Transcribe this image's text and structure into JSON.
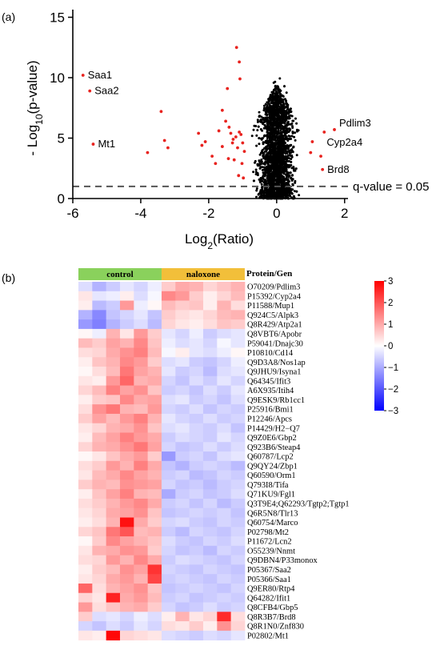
{
  "panels": {
    "a": "(a)",
    "b": "(b)"
  },
  "chart_data": [
    {
      "type": "scatter",
      "xlabel_base": "Log",
      "xlabel_sub": "2",
      "xlabel_rest": "(Ratio)",
      "ylabel_pre": "- Log",
      "ylabel_sub": "10",
      "ylabel_rest": "(p-value)",
      "xlim": [
        -6,
        2.1
      ],
      "ylim": [
        0,
        15.5
      ],
      "xticks": [
        "-6",
        "-4",
        "-2",
        "0",
        "2"
      ],
      "yticks": [
        "0",
        "5",
        "10",
        "15"
      ],
      "threshold": {
        "y": 1.0,
        "label": "q-value = 0.05"
      },
      "colors": {
        "significant": "#e8231f",
        "other": "#000000",
        "threshold": "#555555"
      },
      "labels": [
        {
          "text": "Saa1",
          "x": -5.7,
          "y": 10.2
        },
        {
          "text": "Saa2",
          "x": -5.5,
          "y": 8.9
        },
        {
          "text": "Mt1",
          "x": -5.4,
          "y": 4.5
        },
        {
          "text": "Pdlim3",
          "x": 1.7,
          "y": 5.7
        },
        {
          "text": "Cyp2a4",
          "x": 1.05,
          "y": 4.7
        },
        {
          "text": "Brd8",
          "x": 1.35,
          "y": 2.4
        }
      ],
      "significant_points": [
        [
          -5.7,
          10.2
        ],
        [
          -5.5,
          8.9
        ],
        [
          -5.4,
          4.5
        ],
        [
          -3.8,
          3.8
        ],
        [
          -3.4,
          7.2
        ],
        [
          -3.3,
          4.8
        ],
        [
          -3.2,
          4.2
        ],
        [
          -2.3,
          5.4
        ],
        [
          -2.2,
          4.4
        ],
        [
          -2.1,
          4.7
        ],
        [
          -1.9,
          3.5
        ],
        [
          -1.7,
          5.6
        ],
        [
          -1.6,
          7.3
        ],
        [
          -1.5,
          6.4
        ],
        [
          -1.45,
          9.1
        ],
        [
          -1.4,
          5.9
        ],
        [
          -1.35,
          5.4
        ],
        [
          -1.3,
          4.6
        ],
        [
          -1.25,
          3.2
        ],
        [
          -1.2,
          5.1
        ],
        [
          -1.18,
          12.5
        ],
        [
          -1.15,
          4.2
        ],
        [
          -1.12,
          1.9
        ],
        [
          -1.1,
          11.3
        ],
        [
          -1.08,
          9.9
        ],
        [
          -1.05,
          5.3
        ],
        [
          -1.02,
          2.9
        ],
        [
          -1.0,
          4.6
        ],
        [
          -0.98,
          1.7
        ],
        [
          -0.95,
          3.9
        ],
        [
          -1.6,
          4.3
        ],
        [
          -1.8,
          2.9
        ],
        [
          -1.28,
          4.9
        ],
        [
          -1.42,
          3.3
        ],
        [
          -1.1,
          5.5
        ],
        [
          1.0,
          3.8
        ],
        [
          1.05,
          4.7
        ],
        [
          1.35,
          2.4
        ],
        [
          1.4,
          5.5
        ],
        [
          1.7,
          5.7
        ],
        [
          1.3,
          3.5
        ]
      ]
    },
    {
      "type": "heatmap",
      "groups": [
        {
          "name": "control",
          "color": "#8ad15c",
          "cols": 6
        },
        {
          "name": "naloxone",
          "color": "#f2bf3a",
          "cols": 6
        }
      ],
      "row_header": "Protein/Gen",
      "colorbar": {
        "min": -3,
        "max": 3,
        "ticks": [
          "3",
          "2",
          "1",
          "0",
          "−1",
          "−2",
          "−3"
        ]
      },
      "rows": [
        {
          "label": "O70209/Pdlim3",
          "values": [
            -0.4,
            -0.9,
            -0.6,
            -0.3,
            -0.5,
            -0.2,
            0.6,
            1.0,
            0.9,
            0.5,
            0.7,
            0.9
          ]
        },
        {
          "label": "P15392/Cyp2a4",
          "values": [
            0.3,
            -0.3,
            -0.2,
            0.2,
            -0.4,
            -0.1,
            1.4,
            1.2,
            0.6,
            0.2,
            0.5,
            0.8
          ]
        },
        {
          "label": "P11588/Mup1",
          "values": [
            0.2,
            -0.8,
            -0.6,
            1.2,
            -0.2,
            0.1,
            0.8,
            0.6,
            0.7,
            0.2,
            0.9,
            0.4
          ]
        },
        {
          "label": "Q924C5/Alpk3",
          "values": [
            -0.9,
            -1.4,
            -0.7,
            -0.5,
            -0.3,
            -0.7,
            0.6,
            0.4,
            0.3,
            0.5,
            0.8,
            0.9
          ]
        },
        {
          "label": "Q8R429/Atp2a1",
          "values": [
            -1.2,
            -1.5,
            -0.9,
            -0.6,
            -0.4,
            -0.8,
            0.5,
            0.3,
            0.2,
            0.4,
            0.7,
            0.6
          ]
        },
        {
          "label": "Q8VBT6/Apobr",
          "values": [
            0.1,
            -0.2,
            0.9,
            0.3,
            1.2,
            0.6,
            -0.3,
            -0.5,
            -0.2,
            -0.6,
            -0.4,
            -0.3
          ]
        },
        {
          "label": "P59041/Dnajc30",
          "values": [
            0.8,
            0.6,
            1.1,
            0.9,
            1.4,
            0.7,
            -0.2,
            -0.4,
            -0.3,
            -0.5,
            -0.1,
            -0.3
          ]
        },
        {
          "label": "P10810/Cd14",
          "values": [
            0.4,
            0.5,
            1.0,
            1.3,
            1.5,
            0.8,
            -0.1,
            0.2,
            -0.3,
            -0.4,
            -0.2,
            0.1
          ]
        },
        {
          "label": "Q9D3A8/Nos1ap",
          "values": [
            0.2,
            0.7,
            0.9,
            1.4,
            1.2,
            0.6,
            -0.4,
            -0.3,
            -0.6,
            -0.7,
            -0.5,
            -0.2
          ]
        },
        {
          "label": "Q9JHU9/Isyna1",
          "values": [
            0.1,
            0.4,
            0.8,
            1.6,
            1.1,
            0.9,
            -0.3,
            -0.6,
            -0.5,
            -0.8,
            -0.4,
            -0.3
          ]
        },
        {
          "label": "Q64345/Ifit3",
          "values": [
            0.3,
            0.2,
            1.2,
            1.8,
            0.9,
            1.0,
            -0.5,
            -0.7,
            -0.4,
            -0.6,
            -0.3,
            -0.5
          ]
        },
        {
          "label": "A6X935/Itih4",
          "values": [
            0.5,
            0.8,
            1.5,
            1.1,
            1.3,
            0.7,
            -0.6,
            -0.5,
            -0.7,
            -0.4,
            -0.6,
            -0.3
          ]
        },
        {
          "label": "Q9ESK9/Rb1cc1",
          "values": [
            0.2,
            0.6,
            0.7,
            1.4,
            1.0,
            1.1,
            -0.4,
            -0.3,
            -0.6,
            -0.5,
            -0.7,
            -0.4
          ]
        },
        {
          "label": "P25916/Bmi1",
          "values": [
            0.4,
            1.3,
            1.6,
            0.9,
            0.8,
            1.2,
            -0.5,
            -0.6,
            -0.4,
            -0.7,
            -0.5,
            -0.6
          ]
        },
        {
          "label": "P12246/Apcs",
          "values": [
            0.6,
            1.1,
            0.8,
            1.2,
            1.5,
            0.9,
            -0.3,
            -0.5,
            -0.6,
            -0.4,
            -0.6,
            -0.5
          ]
        },
        {
          "label": "P14429/H2−Q7",
          "values": [
            0.3,
            0.5,
            0.9,
            1.0,
            1.3,
            0.7,
            -0.4,
            -0.3,
            -0.5,
            -0.6,
            -0.4,
            -0.7
          ]
        },
        {
          "label": "Q9Z0E6/Gbp2",
          "values": [
            0.2,
            0.8,
            1.1,
            1.5,
            1.2,
            1.0,
            -0.6,
            -0.4,
            -0.5,
            -0.6,
            -0.3,
            -0.5
          ]
        },
        {
          "label": "Q923B6/Steap4",
          "values": [
            0.5,
            0.9,
            1.0,
            1.3,
            1.6,
            1.1,
            -0.5,
            -0.7,
            -0.6,
            -0.4,
            -0.6,
            -0.4
          ]
        },
        {
          "label": "Q60787/Lcp2",
          "values": [
            0.1,
            0.3,
            0.7,
            1.0,
            1.2,
            0.6,
            -1.2,
            -0.6,
            -0.5,
            -0.7,
            -0.4,
            -0.3
          ]
        },
        {
          "label": "Q9QY24/Zbp1",
          "values": [
            0.4,
            0.6,
            1.2,
            0.9,
            1.5,
            1.0,
            -0.7,
            -0.9,
            -0.6,
            -0.5,
            -0.6,
            -0.8
          ]
        },
        {
          "label": "Q60590/Orm1",
          "values": [
            0.3,
            0.8,
            1.0,
            1.4,
            1.1,
            0.9,
            -0.6,
            -0.5,
            -0.8,
            -0.7,
            -0.5,
            -0.6
          ]
        },
        {
          "label": "Q793I8/Tifa",
          "values": [
            0.6,
            0.9,
            0.8,
            1.3,
            1.2,
            1.1,
            -0.5,
            -0.7,
            -0.6,
            -0.8,
            -0.6,
            -0.5
          ]
        },
        {
          "label": "Q71KU9/Fgl1",
          "values": [
            0.2,
            0.7,
            1.1,
            1.5,
            0.9,
            0.8,
            -1.0,
            -0.6,
            -0.5,
            -0.7,
            -0.6,
            -0.4
          ]
        },
        {
          "label": "Q3T9E4;Q62293/Tgtp2;Tgtp1",
          "values": [
            0.4,
            0.6,
            0.9,
            1.2,
            1.4,
            1.0,
            -0.6,
            -0.5,
            -0.7,
            -0.5,
            -0.8,
            -0.6
          ]
        },
        {
          "label": "Q6R5N8/Tlr13",
          "values": [
            0.3,
            0.5,
            1.0,
            1.1,
            1.3,
            0.7,
            -0.7,
            -0.6,
            -0.5,
            -0.6,
            -0.5,
            -0.7
          ]
        },
        {
          "label": "Q60754/Marco",
          "values": [
            0.2,
            0.4,
            0.9,
            2.8,
            1.0,
            0.6,
            -0.5,
            -0.4,
            -0.6,
            -0.7,
            -0.5,
            -0.6
          ]
        },
        {
          "label": "P02798/Mt2",
          "values": [
            0.5,
            0.7,
            1.6,
            2.0,
            0.8,
            0.9,
            -0.6,
            -0.8,
            -0.5,
            -0.6,
            -0.7,
            -0.5
          ]
        },
        {
          "label": "P11672/Lcn2",
          "values": [
            0.1,
            0.6,
            1.4,
            1.1,
            0.9,
            0.7,
            -0.4,
            -0.6,
            -0.7,
            -0.5,
            -0.6,
            -0.4
          ]
        },
        {
          "label": "O55239/Nnmt",
          "values": [
            0.3,
            0.9,
            1.0,
            1.3,
            1.2,
            0.6,
            -0.5,
            -0.7,
            -0.6,
            -0.8,
            -0.5,
            -0.6
          ]
        },
        {
          "label": "Q9DBN4/P33monox",
          "values": [
            0.4,
            0.5,
            1.2,
            0.9,
            1.4,
            1.0,
            -0.6,
            -0.4,
            -0.5,
            -0.6,
            -0.7,
            -0.5
          ]
        },
        {
          "label": "P05367/Saa2",
          "values": [
            0.2,
            0.6,
            0.8,
            1.3,
            1.1,
            2.4,
            -0.5,
            -0.6,
            -0.7,
            -0.5,
            -0.6,
            -0.7
          ]
        },
        {
          "label": "P05366/Saa1",
          "values": [
            0.3,
            0.5,
            1.0,
            1.2,
            0.9,
            2.2,
            -0.6,
            -0.5,
            -0.6,
            -0.7,
            -0.5,
            -0.6
          ]
        },
        {
          "label": "Q9ER80/Rtp4",
          "values": [
            1.8,
            0.4,
            0.9,
            1.1,
            1.3,
            0.7,
            -0.7,
            -0.6,
            -0.5,
            -0.6,
            -0.7,
            -0.5
          ]
        },
        {
          "label": "Q64282/Ifit1",
          "values": [
            0.5,
            0.3,
            2.6,
            1.0,
            1.2,
            0.8,
            -0.6,
            -0.5,
            -0.7,
            -0.6,
            -0.5,
            -0.6
          ]
        },
        {
          "label": "Q8CFB4/Gbp5",
          "values": [
            1.2,
            0.4,
            0.7,
            0.9,
            1.0,
            0.6,
            -0.5,
            -0.7,
            -0.6,
            -0.4,
            -0.6,
            -0.5
          ]
        },
        {
          "label": "Q8R3B7/Brd8",
          "values": [
            0.6,
            -0.4,
            -0.3,
            -0.5,
            -0.2,
            -0.4,
            0.2,
            0.9,
            0.3,
            0.5,
            2.5,
            0.4
          ]
        },
        {
          "label": "Q8R1N0/Znf830",
          "values": [
            -0.5,
            -0.7,
            -0.4,
            -0.6,
            -0.3,
            -0.5,
            0.4,
            0.3,
            0.6,
            0.2,
            1.3,
            0.5
          ]
        },
        {
          "label": "P02802/Mt1",
          "values": [
            0.3,
            0.2,
            2.9,
            0.5,
            0.4,
            0.3,
            -0.4,
            -0.5,
            -0.6,
            -0.4,
            -0.5,
            -0.3
          ]
        }
      ]
    }
  ]
}
